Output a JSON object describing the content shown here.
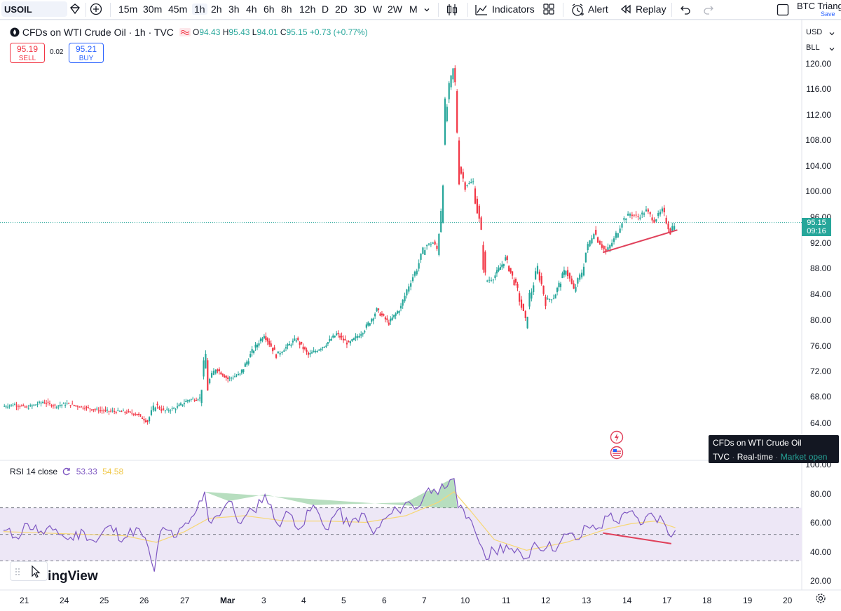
{
  "toolbar": {
    "symbol": "USOIL",
    "timeframes": [
      "15m",
      "30m",
      "45m",
      "1h",
      "2h",
      "3h",
      "4h",
      "6h",
      "8h",
      "12h",
      "D",
      "2D",
      "3D",
      "W",
      "2W",
      "M"
    ],
    "active_timeframe": "1h",
    "indicators_label": "Indicators",
    "alert_label": "Alert",
    "replay_label": "Replay",
    "layout_name": "BTC Triang",
    "save_label": "Save"
  },
  "legend": {
    "title": "CFDs on WTI Crude Oil · 1h · TVC",
    "open_key": "O",
    "open": "94.43",
    "high_key": "H",
    "high": "95.43",
    "low_key": "L",
    "low": "94.01",
    "close_key": "C",
    "close": "95.15",
    "change": "+0.73 (+0.77%)"
  },
  "trade": {
    "sell_price": "95.19",
    "sell_label": "SELL",
    "spread": "0.02",
    "buy_price": "95.21",
    "buy_label": "BUY"
  },
  "price_axis": {
    "currency": "USD",
    "unit": "BLL",
    "labels": [
      "120.00",
      "116.00",
      "112.00",
      "108.00",
      "104.00",
      "100.00",
      "96.00",
      "92.00",
      "88.00",
      "84.00",
      "80.00",
      "76.00",
      "72.00",
      "68.00",
      "64.00"
    ],
    "last_price": "95.15",
    "countdown": "09:16"
  },
  "rsi": {
    "label": "RSI 14 close",
    "value": "53.33",
    "ma_value": "54.58",
    "axis_labels": [
      "100.00",
      "80.00",
      "60.00",
      "40.00",
      "20.00"
    ]
  },
  "time_axis": {
    "labels": [
      "21",
      "24",
      "25",
      "26",
      "27",
      "Mar",
      "3",
      "4",
      "5",
      "6",
      "7",
      "10",
      "11",
      "12",
      "13",
      "14",
      "17",
      "18",
      "19",
      "20"
    ]
  },
  "tooltip": {
    "title": "CFDs on WTI Crude Oil",
    "source": "TVC",
    "mode": "Real-time",
    "status": "Market open"
  },
  "watermark": "adingView",
  "colors": {
    "up": "#26a69a",
    "down": "#f23645",
    "rsi_line": "#7e57c2",
    "rsi_ma": "#f7d774",
    "rsi_band": "#ede7f6",
    "trendline": "#e0405a"
  },
  "chart_data": {
    "type": "candlestick",
    "title": "CFDs on WTI Crude Oil · 1h · TVC",
    "ylim": [
      62,
      122
    ],
    "x_ticks": [
      "21",
      "24",
      "25",
      "26",
      "27",
      "Mar",
      "3",
      "4",
      "5",
      "6",
      "7",
      "10",
      "11",
      "12",
      "13",
      "14",
      "17",
      "18",
      "19",
      "20"
    ],
    "close_path": [
      [
        0,
        66.5
      ],
      [
        0.3,
        66.8
      ],
      [
        0.6,
        66.3
      ],
      [
        1,
        67.2
      ],
      [
        1.3,
        66.6
      ],
      [
        1.6,
        66.9
      ],
      [
        2,
        66.4
      ],
      [
        2.3,
        66.0
      ],
      [
        2.6,
        65.8
      ],
      [
        3,
        65.7
      ],
      [
        3.3,
        65.4
      ],
      [
        3.6,
        64.2
      ],
      [
        3.8,
        66.8
      ],
      [
        4,
        65.8
      ],
      [
        4.3,
        66.2
      ],
      [
        4.6,
        67.5
      ],
      [
        4.9,
        67.8
      ],
      [
        5.05,
        74.5
      ],
      [
        5.1,
        70.0
      ],
      [
        5.3,
        72.5
      ],
      [
        5.6,
        70.8
      ],
      [
        5.9,
        71.5
      ],
      [
        6.2,
        75.0
      ],
      [
        6.5,
        77.8
      ],
      [
        6.8,
        74.5
      ],
      [
        7,
        75.5
      ],
      [
        7.3,
        77.0
      ],
      [
        7.6,
        74.5
      ],
      [
        8,
        76.0
      ],
      [
        8.3,
        77.8
      ],
      [
        8.6,
        76.2
      ],
      [
        9,
        78.5
      ],
      [
        9.3,
        81.5
      ],
      [
        9.6,
        79.5
      ],
      [
        9.9,
        82.0
      ],
      [
        10.1,
        85.5
      ],
      [
        10.3,
        88.0
      ],
      [
        10.5,
        91.5
      ],
      [
        10.7,
        92.0
      ],
      [
        10.8,
        91.0
      ],
      [
        10.9,
        98.0
      ],
      [
        11.0,
        111.0
      ],
      [
        11.1,
        115.5
      ],
      [
        11.2,
        118.8
      ],
      [
        11.25,
        116.5
      ],
      [
        11.35,
        104.0
      ],
      [
        11.5,
        101.0
      ],
      [
        11.7,
        101.5
      ],
      [
        11.9,
        93.0
      ],
      [
        12.0,
        86.0
      ],
      [
        12.2,
        86.5
      ],
      [
        12.5,
        89.5
      ],
      [
        12.8,
        84.5
      ],
      [
        13.0,
        79.5
      ],
      [
        13.1,
        83.5
      ],
      [
        13.3,
        88.0
      ],
      [
        13.5,
        83.0
      ],
      [
        13.7,
        83.5
      ],
      [
        14.0,
        88.0
      ],
      [
        14.2,
        84.5
      ],
      [
        14.4,
        87.5
      ],
      [
        14.5,
        90.5
      ],
      [
        14.7,
        94.0
      ],
      [
        14.8,
        92.5
      ],
      [
        15.0,
        90.5
      ],
      [
        15.2,
        92.5
      ],
      [
        15.4,
        95.5
      ],
      [
        15.6,
        96.5
      ],
      [
        15.8,
        96.0
      ],
      [
        16.0,
        97.0
      ],
      [
        16.2,
        95.5
      ],
      [
        16.4,
        97.0
      ],
      [
        16.6,
        93.8
      ],
      [
        16.7,
        95.15
      ]
    ],
    "trendline": [
      [
        14.9,
        90.5
      ],
      [
        16.75,
        94.0
      ]
    ],
    "last_price": 95.15
  },
  "rsi_data": {
    "type": "line",
    "ylim": [
      15,
      103
    ],
    "levels": [
      70,
      50,
      30
    ],
    "series": [
      [
        0,
        53
      ],
      [
        0.3,
        48
      ],
      [
        0.6,
        58
      ],
      [
        1,
        50
      ],
      [
        1.3,
        54
      ],
      [
        1.6,
        46
      ],
      [
        2,
        52
      ],
      [
        2.3,
        44
      ],
      [
        2.6,
        56
      ],
      [
        3,
        47
      ],
      [
        3.3,
        55
      ],
      [
        3.6,
        40
      ],
      [
        3.75,
        22
      ],
      [
        3.9,
        52
      ],
      [
        4.1,
        53
      ],
      [
        4.3,
        48
      ],
      [
        4.6,
        58
      ],
      [
        4.8,
        68
      ],
      [
        5.0,
        82
      ],
      [
        5.1,
        60
      ],
      [
        5.3,
        64
      ],
      [
        5.6,
        75
      ],
      [
        5.9,
        58
      ],
      [
        6.2,
        68
      ],
      [
        6.5,
        80
      ],
      [
        6.8,
        58
      ],
      [
        7.1,
        66
      ],
      [
        7.4,
        55
      ],
      [
        7.7,
        72
      ],
      [
        8.0,
        54
      ],
      [
        8.3,
        68
      ],
      [
        8.6,
        56
      ],
      [
        8.9,
        66
      ],
      [
        9.2,
        50
      ],
      [
        9.5,
        62
      ],
      [
        9.8,
        68
      ],
      [
        10.0,
        74
      ],
      [
        10.3,
        70
      ],
      [
        10.5,
        82
      ],
      [
        10.7,
        84
      ],
      [
        10.8,
        80
      ],
      [
        10.9,
        88
      ],
      [
        11.1,
        91
      ],
      [
        11.2,
        92
      ],
      [
        11.3,
        70
      ],
      [
        11.5,
        62
      ],
      [
        11.7,
        54
      ],
      [
        11.9,
        40
      ],
      [
        12.0,
        31
      ],
      [
        12.2,
        38
      ],
      [
        12.5,
        42
      ],
      [
        12.7,
        36
      ],
      [
        13.0,
        32
      ],
      [
        13.2,
        44
      ],
      [
        13.5,
        40
      ],
      [
        13.8,
        42
      ],
      [
        14.0,
        50
      ],
      [
        14.3,
        46
      ],
      [
        14.5,
        56
      ],
      [
        14.8,
        55
      ],
      [
        15.1,
        66
      ],
      [
        15.3,
        58
      ],
      [
        15.5,
        66
      ],
      [
        15.7,
        64
      ],
      [
        15.9,
        58
      ],
      [
        16.1,
        66
      ],
      [
        16.4,
        60
      ],
      [
        16.6,
        48
      ],
      [
        16.7,
        53
      ]
    ],
    "ma_series": [
      [
        0,
        52
      ],
      [
        1,
        51
      ],
      [
        2,
        50
      ],
      [
        3,
        49
      ],
      [
        3.8,
        44
      ],
      [
        4.5,
        52
      ],
      [
        5.1,
        62
      ],
      [
        6,
        64
      ],
      [
        7,
        60
      ],
      [
        8,
        60
      ],
      [
        9,
        59
      ],
      [
        10,
        64
      ],
      [
        10.8,
        74
      ],
      [
        11.2,
        82
      ],
      [
        11.6,
        68
      ],
      [
        12.2,
        46
      ],
      [
        13,
        38
      ],
      [
        14,
        44
      ],
      [
        15,
        54
      ],
      [
        15.6,
        58
      ],
      [
        16.2,
        60
      ],
      [
        16.7,
        55
      ]
    ],
    "divergence_line": [
      [
        14.9,
        51
      ],
      [
        16.6,
        43
      ]
    ]
  }
}
